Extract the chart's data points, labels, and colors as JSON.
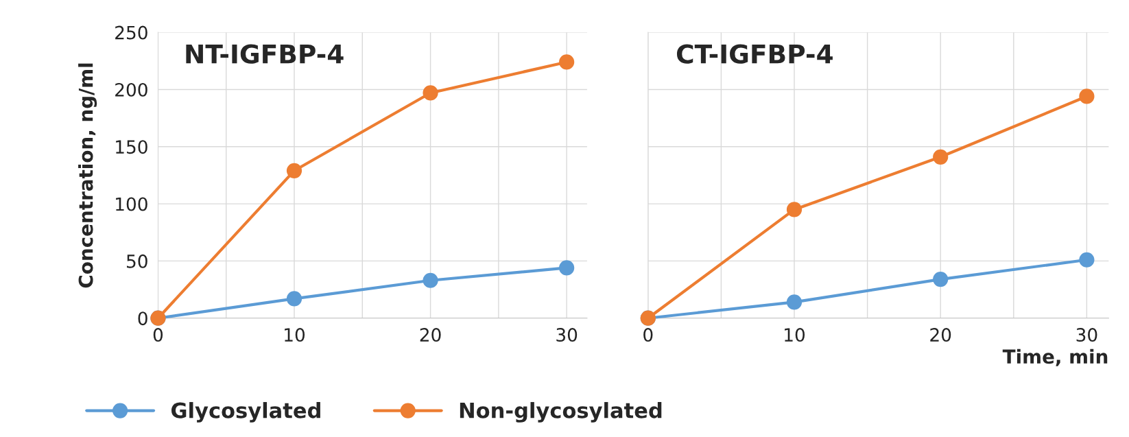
{
  "chart_data": [
    {
      "type": "line",
      "title": "NT-IGFBP-4",
      "ylabel": "Concentration, ng/ml",
      "x": [
        0,
        10,
        20,
        30
      ],
      "series": [
        {
          "name": "Glycosylated",
          "color": "#5b9bd5",
          "values": [
            0,
            17,
            33,
            44
          ]
        },
        {
          "name": "Non-glycosylated",
          "color": "#ed7d31",
          "values": [
            0,
            129,
            197,
            224
          ]
        }
      ],
      "xlim": [
        0,
        31.5
      ],
      "xticks": [
        0,
        {
          "value": 5,
          "label": null
        },
        10,
        {
          "value": 15,
          "label": null
        },
        20,
        {
          "value": 25,
          "label": null
        },
        30
      ],
      "ylim": [
        0,
        250
      ],
      "yticks": [
        0,
        50,
        100,
        150,
        200,
        250
      ],
      "grid": true,
      "marker": "circle",
      "line_style": "solid",
      "legend": "bottom"
    },
    {
      "type": "line",
      "title": "CT-IGFBP-4",
      "xlabel": "Time, min",
      "x": [
        0,
        10,
        20,
        30
      ],
      "series": [
        {
          "color": "#5b9bd5",
          "values": [
            0,
            14,
            34,
            51
          ]
        },
        {
          "color": "#ed7d31",
          "values": [
            0,
            95,
            141,
            194
          ]
        }
      ],
      "xlim": [
        0,
        31.5
      ],
      "xticks": [
        0,
        {
          "value": 5,
          "label": null
        },
        10,
        {
          "value": 15,
          "label": null
        },
        20,
        {
          "value": 25,
          "label": null
        },
        30
      ],
      "ylim": [
        0,
        250
      ],
      "yticks": [
        0,
        50,
        100,
        150,
        200,
        250
      ],
      "tick_labels": "x",
      "grid": true,
      "marker": "circle",
      "line_style": "solid"
    }
  ]
}
